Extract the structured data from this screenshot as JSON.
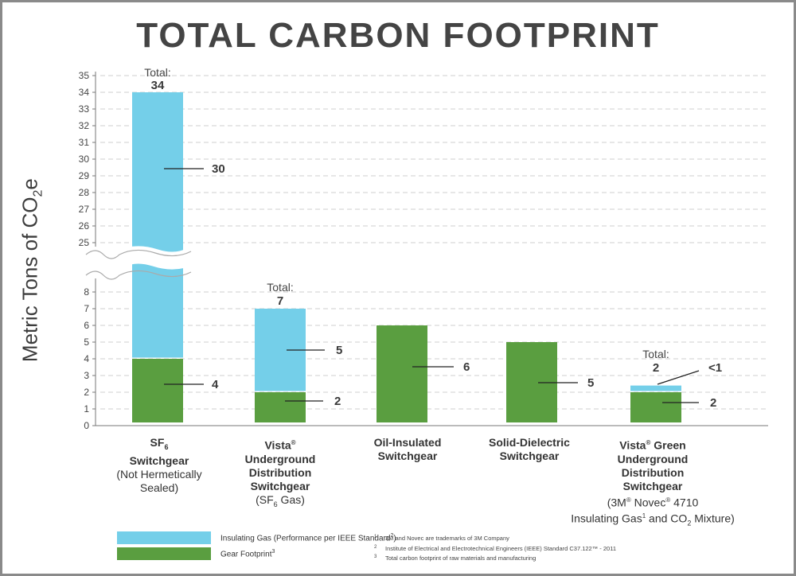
{
  "chart_data": {
    "type": "bar",
    "stacked": true,
    "title": "TOTAL CARBON FOOTPRINT",
    "ylabel_main": "Metric Tons of CO",
    "ylabel_sub": "2",
    "ylabel_end": "e",
    "y_axis_broken": true,
    "ylim_lower": [
      0,
      8
    ],
    "ylim_upper": [
      25,
      35
    ],
    "yticks_lower": [
      "0",
      "1",
      "2",
      "3",
      "4",
      "5",
      "6",
      "7",
      "8"
    ],
    "yticks_upper": [
      "25",
      "26",
      "27",
      "28",
      "29",
      "30",
      "31",
      "32",
      "33",
      "34",
      "35"
    ],
    "grid": true,
    "categories": [
      "SF6 Switchgear (Not Hermetically Sealed)",
      "Vista Underground Distribution Switchgear (SF6 Gas)",
      "Oil-Insulated Switchgear",
      "Solid-Dielectric Switchgear",
      "Vista Green Underground Distribution Switchgear (3M Novec 4710 Insulating Gas and CO2 Mixture)"
    ],
    "series": [
      {
        "name": "Gear Footprint",
        "color": "#5a9e40",
        "values": [
          4,
          2,
          6,
          5,
          2
        ],
        "value_labels": [
          "4",
          "2",
          "6",
          "5",
          "2"
        ]
      },
      {
        "name": "Insulating Gas",
        "color": "#74cfe9",
        "values": [
          30,
          5,
          0,
          0,
          0.4
        ],
        "value_labels": [
          "30",
          "5",
          "",
          "",
          "<1"
        ]
      }
    ],
    "totals": [
      {
        "index": 0,
        "prefix": "Total:",
        "value": "34"
      },
      {
        "index": 1,
        "prefix": "Total:",
        "value": "7"
      },
      {
        "index": 4,
        "prefix": "Total:",
        "value": "2"
      }
    ],
    "labels": [
      {
        "a": "SF",
        "a_sub": "6",
        "b": "Switchgear",
        "c": "(Not Hermetically",
        "d": "Sealed)"
      },
      {
        "a": "Vista",
        "a_sup": "®",
        "b": "Underground",
        "c": "Distribution",
        "d": "Switchgear",
        "e": "(SF",
        "e_sub": "6",
        "e_end": " Gas)"
      },
      {
        "a": "Oil-Insulated",
        "b": "Switchgear"
      },
      {
        "a": "Solid-Dielectric",
        "b": "Switchgear"
      },
      {
        "a": "Vista",
        "a_sup": "®",
        "a_end": " Green",
        "b": "Underground",
        "c": "Distribution",
        "d": "Switchgear",
        "e1": "(3M",
        "e1_sup": "®",
        "e2": " Novec",
        "e2_sup": "®",
        "e3": " 4710",
        "f1": "Insulating Gas",
        "f1_sup": "1",
        "f2": " and CO",
        "f2_sub": "2",
        "f3": " Mixture)"
      }
    ],
    "legend": [
      {
        "label": "Insulating Gas (Performance per IEEE Standard",
        "sup": "2",
        "end": ")"
      },
      {
        "label": "Gear Footprint",
        "sup": "3"
      }
    ],
    "footnotes": [
      {
        "n": "1",
        "text": "3M and Novec are trademarks of 3M Company"
      },
      {
        "n": "2",
        "text": "Institute of Electrical and Electrotechnical Engineers (IEEE) Standard C37.122™ - 2011"
      },
      {
        "n": "3",
        "text": "Total carbon footprint of raw materials and manufacturing"
      }
    ]
  }
}
